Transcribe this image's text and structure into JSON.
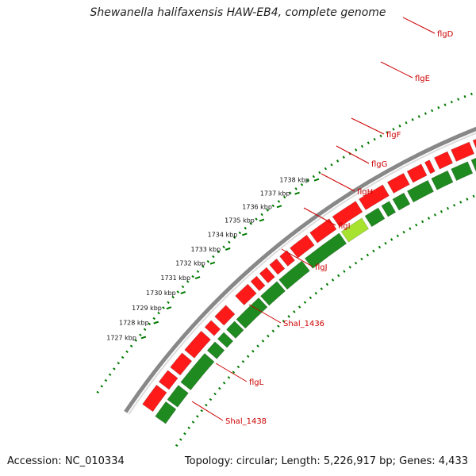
{
  "title": "Shewanella halifaxensis HAW-EB4, complete genome",
  "footer": {
    "accession_label": "Accession: NC_010334",
    "topology_label": "Topology: circular; Length: 5,226,917 bp; Genes: 4,433"
  },
  "colors": {
    "forward_gene": "#ff1a1a",
    "reverse_gene": "#1f8a1f",
    "highlight_gene": "#a6e22e",
    "label": "#cc0000",
    "tick": "#007a00",
    "backbone": "#888888"
  },
  "ticks": [
    {
      "label": "1727 kbp"
    },
    {
      "label": "1728 kbp"
    },
    {
      "label": "1729 kbp"
    },
    {
      "label": "1730 kbp"
    },
    {
      "label": "1731 kbp"
    },
    {
      "label": "1732 kbp"
    },
    {
      "label": "1733 kbp"
    },
    {
      "label": "1734 kbp"
    },
    {
      "label": "1735 kbp"
    },
    {
      "label": "1736 kbp"
    },
    {
      "label": "1737 kbp"
    },
    {
      "label": "1738 kbp"
    }
  ],
  "gene_labels": [
    {
      "name": "flgD"
    },
    {
      "name": "flgE"
    },
    {
      "name": "flgF"
    },
    {
      "name": "flgG"
    },
    {
      "name": "flgH"
    },
    {
      "name": "flgI"
    },
    {
      "name": "flgJ"
    },
    {
      "name": "Shal_1436"
    },
    {
      "name": "flgL"
    },
    {
      "name": "Shal_1438"
    }
  ]
}
